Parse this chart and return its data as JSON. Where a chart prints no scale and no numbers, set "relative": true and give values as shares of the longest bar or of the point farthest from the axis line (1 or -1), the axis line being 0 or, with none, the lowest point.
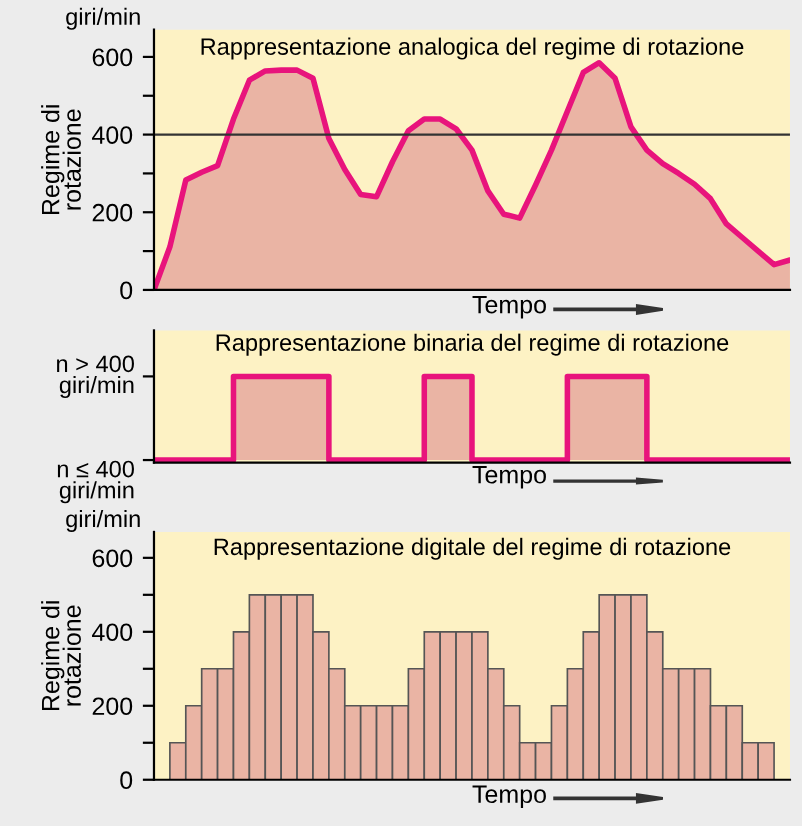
{
  "chart_data": [
    {
      "type": "area",
      "title": "Rappresentazione analogica del regime di rotazione",
      "xlabel": "Tempo",
      "ylabel": "Regime di\nrotazione",
      "annotations": [
        "giri/min"
      ],
      "tick_labels": "y",
      "legend": false,
      "grid": false,
      "categories": [
        null,
        null,
        null,
        null,
        null,
        null,
        null,
        null,
        null,
        null,
        null,
        null,
        null,
        null,
        null,
        null,
        null,
        null,
        null,
        null,
        null,
        null,
        null,
        null,
        null,
        null,
        null,
        null,
        null,
        null,
        null,
        null,
        null,
        null,
        null,
        null,
        null,
        null,
        null,
        null,
        null
      ],
      "series": [
        {
          "color": "#e8147c",
          "values": [
            0,
            111,
            283,
            303,
            320,
            440,
            540,
            564,
            566,
            566,
            545,
            390,
            310,
            246,
            240,
            330,
            410,
            440,
            440,
            415,
            360,
            255,
            195,
            185,
            270,
            360,
            460,
            560,
            585,
            545,
            420,
            360,
            325,
            300,
            272,
            235,
            170,
            135,
            100,
            65,
            77
          ]
        }
      ],
      "ylim": [
        0,
        670
      ],
      "yticks": [
        0,
        {
          "value": 100,
          "label": null
        },
        200,
        {
          "value": 300,
          "label": null
        },
        400,
        {
          "value": 500,
          "label": null
        },
        600
      ],
      "ref_lines": [
        {
          "axis": "y",
          "value": 400,
          "label": null,
          "color": "#333333"
        }
      ]
    },
    {
      "type": "step",
      "title": "Rappresentazione binaria del regime di rotazione",
      "xlabel": "Tempo",
      "tick_labels": "y",
      "legend": false,
      "grid": false,
      "categories": [
        null,
        null,
        null,
        null,
        null,
        null,
        null,
        null,
        null,
        null,
        null,
        null,
        null,
        null,
        null,
        null,
        null,
        null,
        null,
        null,
        null,
        null,
        null,
        null,
        null,
        null,
        null,
        null,
        null,
        null,
        null,
        null,
        null,
        null,
        null,
        null,
        null,
        null,
        null,
        null,
        null
      ],
      "series": [
        {
          "color": "#e8147c",
          "values": [
            0,
            0,
            0,
            0,
            0,
            1,
            1,
            1,
            1,
            1,
            1,
            0,
            0,
            0,
            0,
            0,
            0,
            1,
            1,
            1,
            0,
            0,
            0,
            0,
            0,
            0,
            1,
            1,
            1,
            1,
            1,
            0,
            0,
            0,
            0,
            0,
            0,
            0,
            0,
            0,
            0
          ]
        }
      ],
      "relative": true,
      "annotations": [
        "n > 400\ngiri/min",
        "n ≤ 400\ngiri/min"
      ]
    },
    {
      "type": "bar",
      "title": "Rappresentazione digitale del regime di rotazione",
      "xlabel": "Tempo",
      "ylabel": "Regime di\nrotazione",
      "annotations": [
        "giri/min"
      ],
      "tick_labels": "y",
      "legend": false,
      "grid": false,
      "categories": [
        null,
        null,
        null,
        null,
        null,
        null,
        null,
        null,
        null,
        null,
        null,
        null,
        null,
        null,
        null,
        null,
        null,
        null,
        null,
        null,
        null,
        null,
        null,
        null,
        null,
        null,
        null,
        null,
        null,
        null,
        null,
        null,
        null,
        null,
        null,
        null,
        null,
        null,
        null,
        null
      ],
      "series": [
        {
          "color": "#eab4a4",
          "values": [
            0,
            100,
            200,
            300,
            300,
            400,
            500,
            500,
            500,
            500,
            400,
            300,
            200,
            200,
            200,
            200,
            300,
            400,
            400,
            400,
            400,
            300,
            200,
            100,
            100,
            200,
            300,
            400,
            500,
            500,
            500,
            400,
            300,
            300,
            300,
            200,
            200,
            100,
            100,
            0
          ]
        }
      ],
      "ylim": [
        0,
        670
      ],
      "yticks": [
        0,
        {
          "value": 100,
          "label": null
        },
        200,
        {
          "value": 300,
          "label": null
        },
        400,
        {
          "value": 500,
          "label": null
        },
        600
      ]
    }
  ]
}
